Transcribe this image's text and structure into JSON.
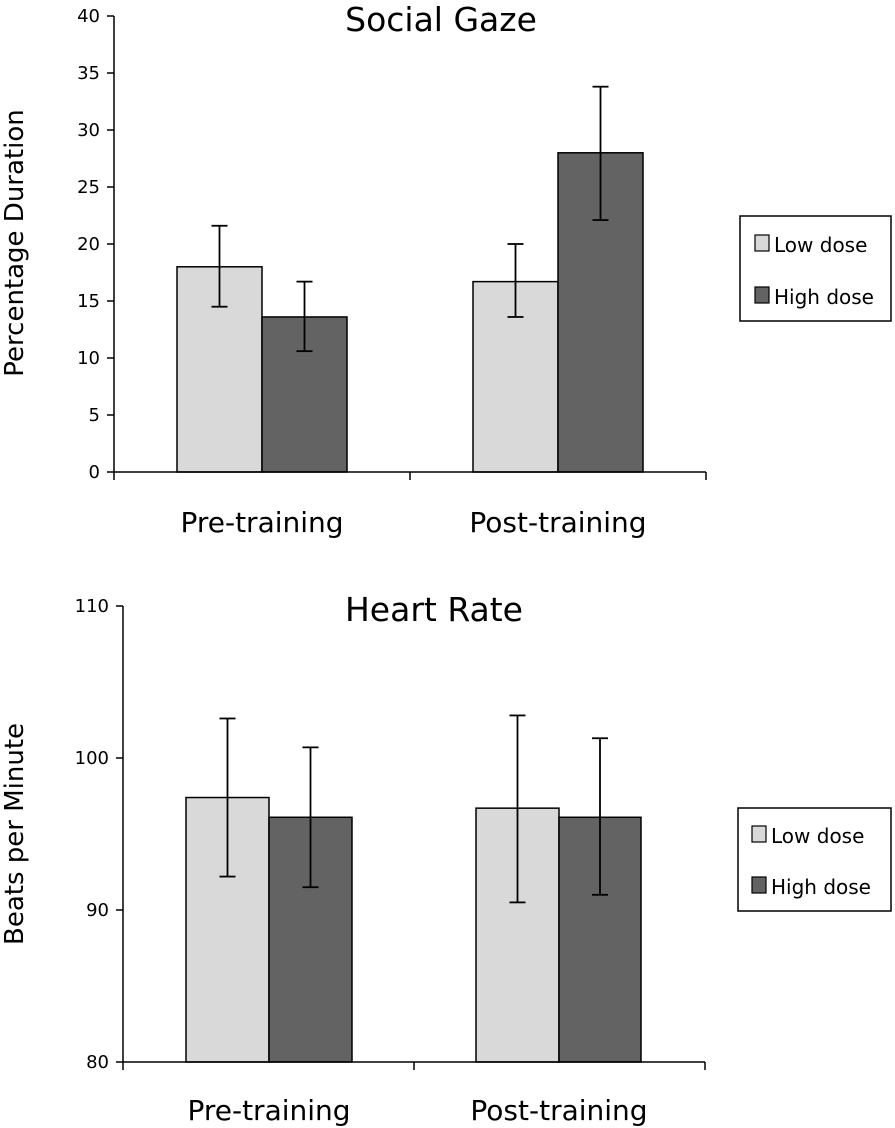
{
  "colors": {
    "low": "#d9d9d9",
    "high": "#636363",
    "stroke": "#000000"
  },
  "chart_data": [
    {
      "type": "bar",
      "title": "Social Gaze",
      "ylabel": "Percentage Duration",
      "xlabel": "",
      "categories": [
        "Pre-training",
        "Post-training"
      ],
      "ylim": [
        0,
        40
      ],
      "yticks": [
        0,
        5,
        10,
        15,
        20,
        25,
        30,
        35,
        40
      ],
      "legend_position": "right",
      "series": [
        {
          "name": "Low dose",
          "values": [
            18.0,
            16.7
          ],
          "error_low": [
            14.5,
            13.6
          ],
          "error_high": [
            21.6,
            20.0
          ]
        },
        {
          "name": "High dose",
          "values": [
            13.6,
            28.0
          ],
          "error_low": [
            10.6,
            22.1
          ],
          "error_high": [
            16.7,
            33.8
          ]
        }
      ]
    },
    {
      "type": "bar",
      "title": "Heart Rate",
      "ylabel": "Beats per Minute",
      "xlabel": "",
      "categories": [
        "Pre-training",
        "Post-training"
      ],
      "ylim": [
        80,
        110
      ],
      "yticks": [
        80,
        90,
        100,
        110
      ],
      "legend_position": "right",
      "series": [
        {
          "name": "Low dose",
          "values": [
            97.4,
            96.7
          ],
          "error_low": [
            92.2,
            90.5
          ],
          "error_high": [
            102.6,
            102.8
          ]
        },
        {
          "name": "High dose",
          "values": [
            96.1,
            96.1
          ],
          "error_low": [
            91.5,
            91.0
          ],
          "error_high": [
            100.7,
            101.3
          ]
        }
      ]
    }
  ]
}
